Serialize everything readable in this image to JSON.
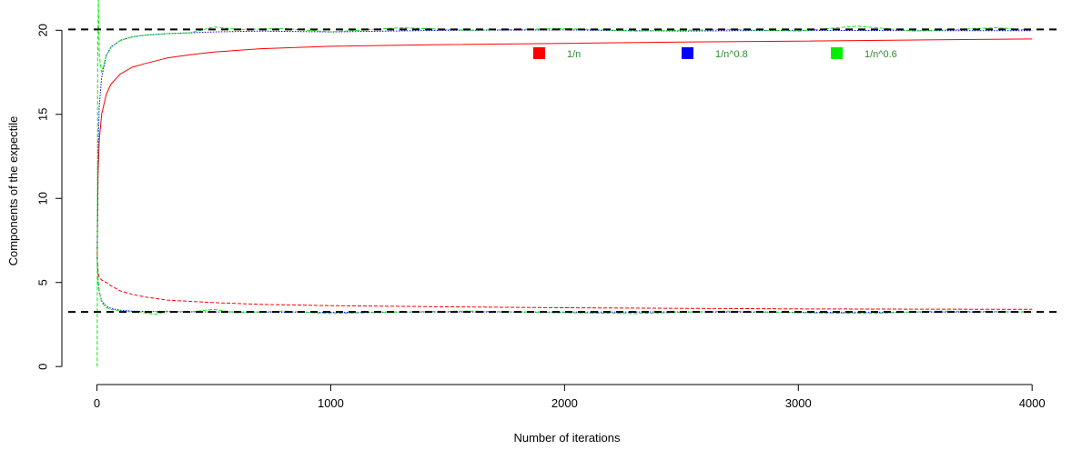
{
  "chart_data": {
    "type": "line",
    "title": "",
    "xlabel": "Number of iterations",
    "ylabel": "Components of the expectile",
    "xlim": [
      -150,
      4120
    ],
    "ylim": [
      -0.8,
      21.8
    ],
    "xticks": [
      0,
      1000,
      2000,
      3000,
      4000
    ],
    "yticks": [
      0,
      5,
      10,
      15,
      20
    ],
    "reference_lines": [
      20.05,
      3.25
    ],
    "grid": false,
    "legend_position": "top-right",
    "legend": [
      {
        "label": "1/n",
        "color": "#ff0000"
      },
      {
        "label": "1/n^0.8",
        "color": "#0000ff"
      },
      {
        "label": "1/n^0.6",
        "color": "#00ee00"
      }
    ],
    "legend_text_color": "#2e8b2e",
    "series": [
      {
        "name": "1/n",
        "component": "upper",
        "color": "#ff0000",
        "style": "solid",
        "x": [
          1,
          5,
          10,
          20,
          40,
          60,
          100,
          150,
          200,
          300,
          400,
          500,
          700,
          1000,
          1500,
          2000,
          2500,
          3000,
          3500,
          4000
        ],
        "y": [
          6.5,
          11.5,
          13.5,
          15.0,
          16.2,
          16.8,
          17.4,
          17.8,
          18.0,
          18.35,
          18.55,
          18.7,
          18.9,
          19.05,
          19.15,
          19.22,
          19.3,
          19.35,
          19.42,
          19.48
        ]
      },
      {
        "name": "1/n",
        "component": "lower",
        "color": "#ff0000",
        "style": "dashed",
        "x": [
          1,
          5,
          10,
          20,
          40,
          60,
          100,
          150,
          200,
          300,
          500,
          700,
          1000,
          1500,
          2000,
          2500,
          3000,
          3500,
          4000
        ],
        "y": [
          6.5,
          5.6,
          5.3,
          5.15,
          5.0,
          4.8,
          4.5,
          4.3,
          4.15,
          3.95,
          3.8,
          3.7,
          3.62,
          3.55,
          3.5,
          3.46,
          3.43,
          3.41,
          3.4
        ]
      },
      {
        "name": "1/n^0.8",
        "component": "upper",
        "color": "#0000ff",
        "style": "dotted",
        "x": [
          1,
          5,
          10,
          20,
          40,
          60,
          100,
          150,
          200,
          300,
          500,
          700,
          1000,
          1500,
          2000,
          2500,
          3000,
          3500,
          4000
        ],
        "y": [
          7.0,
          13.0,
          15.5,
          17.2,
          18.5,
          19.0,
          19.4,
          19.6,
          19.7,
          19.8,
          19.9,
          19.95,
          19.9,
          20.0,
          20.02,
          19.95,
          20.0,
          19.98,
          19.97
        ]
      },
      {
        "name": "1/n^0.8",
        "component": "lower",
        "color": "#0000ff",
        "style": "dotted",
        "x": [
          1,
          5,
          10,
          20,
          40,
          60,
          100,
          150,
          200,
          300,
          500,
          700,
          1000,
          1500,
          2000,
          2500,
          3000,
          3500,
          4000
        ],
        "y": [
          6.5,
          5.0,
          4.4,
          3.9,
          3.6,
          3.45,
          3.35,
          3.3,
          3.28,
          3.26,
          3.25,
          3.24,
          3.23,
          3.25,
          3.24,
          3.25,
          3.23,
          3.24,
          3.25
        ]
      },
      {
        "name": "1/n^0.6",
        "component": "upper",
        "color": "#00ee00",
        "style": "dashed",
        "x": [
          1,
          3,
          6,
          10,
          20,
          40,
          60,
          100,
          150,
          200,
          300,
          400,
          500,
          600,
          800,
          1000,
          1300,
          1600,
          2000,
          2300,
          2700,
          3000,
          3250,
          3500,
          3850,
          4000
        ],
        "y": [
          0.0,
          18.0,
          21.8,
          18.5,
          17.5,
          18.5,
          19.0,
          19.4,
          19.6,
          19.7,
          19.8,
          19.85,
          20.2,
          20.05,
          20.1,
          19.9,
          20.15,
          20.0,
          20.1,
          19.95,
          20.05,
          19.95,
          20.25,
          19.95,
          20.15,
          20.0
        ]
      },
      {
        "name": "1/n^0.6",
        "component": "lower",
        "color": "#00ee00",
        "style": "dashed",
        "x": [
          1,
          5,
          10,
          20,
          40,
          60,
          100,
          150,
          200,
          250,
          300,
          400,
          500,
          600,
          800,
          1000,
          1300,
          1600,
          2000,
          2300,
          2700,
          3000,
          3300,
          3600,
          4000
        ],
        "y": [
          6.0,
          5.2,
          4.5,
          3.8,
          3.5,
          3.4,
          3.3,
          3.25,
          3.2,
          3.1,
          3.3,
          3.25,
          3.4,
          3.2,
          3.3,
          3.15,
          3.25,
          3.3,
          3.2,
          3.15,
          3.3,
          3.2,
          3.15,
          3.3,
          3.25
        ]
      }
    ]
  }
}
